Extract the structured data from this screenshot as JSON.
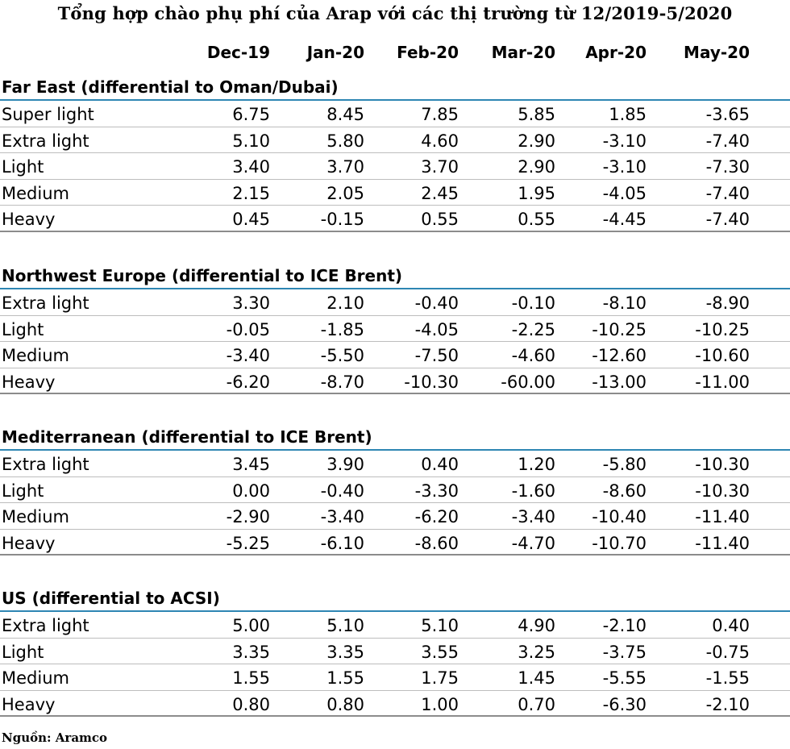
{
  "title": "Tổng hợp chào phụ phí của Arap với các thị trường từ 12/2019-5/2020",
  "columns": [
    "Dec-19",
    "Jan-20",
    "Feb-20",
    "Mar-20",
    "Apr-20",
    "May-20"
  ],
  "sections": [
    {
      "title": "Far East (differential to Oman/Dubai)",
      "rows": [
        {
          "label": "Super light",
          "values": [
            "6.75",
            "8.45",
            "7.85",
            "5.85",
            "1.85",
            "-3.65"
          ]
        },
        {
          "label": "Extra light",
          "values": [
            "5.10",
            "5.80",
            "4.60",
            "2.90",
            "-3.10",
            "-7.40"
          ]
        },
        {
          "label": "Light",
          "values": [
            "3.40",
            "3.70",
            "3.70",
            "2.90",
            "-3.10",
            "-7.30"
          ]
        },
        {
          "label": "Medium",
          "values": [
            "2.15",
            "2.05",
            "2.45",
            "1.95",
            "-4.05",
            "-7.40"
          ]
        },
        {
          "label": "Heavy",
          "values": [
            "0.45",
            "-0.15",
            "0.55",
            "0.55",
            "-4.45",
            "-7.40"
          ]
        }
      ]
    },
    {
      "title": "Northwest Europe (differential to ICE Brent)",
      "rows": [
        {
          "label": "Extra light",
          "values": [
            "3.30",
            "2.10",
            "-0.40",
            "-0.10",
            "-8.10",
            "-8.90"
          ]
        },
        {
          "label": "Light",
          "values": [
            "-0.05",
            "-1.85",
            "-4.05",
            "-2.25",
            "-10.25",
            "-10.25"
          ]
        },
        {
          "label": "Medium",
          "values": [
            "-3.40",
            "-5.50",
            "-7.50",
            "-4.60",
            "-12.60",
            "-10.60"
          ]
        },
        {
          "label": "Heavy",
          "values": [
            "-6.20",
            "-8.70",
            "-10.30",
            "-60.00",
            "-13.00",
            "-11.00"
          ]
        }
      ]
    },
    {
      "title": "Mediterranean (differential to ICE Brent)",
      "rows": [
        {
          "label": "Extra light",
          "values": [
            "3.45",
            "3.90",
            "0.40",
            "1.20",
            "-5.80",
            "-10.30"
          ]
        },
        {
          "label": "Light",
          "values": [
            "0.00",
            "-0.40",
            "-3.30",
            "-1.60",
            "-8.60",
            "-10.30"
          ]
        },
        {
          "label": "Medium",
          "values": [
            "-2.90",
            "-3.40",
            "-6.20",
            "-3.40",
            "-10.40",
            "-11.40"
          ]
        },
        {
          "label": "Heavy",
          "values": [
            "-5.25",
            "-6.10",
            "-8.60",
            "-4.70",
            "-10.70",
            "-11.40"
          ]
        }
      ]
    },
    {
      "title": "US (differential to ACSI)",
      "rows": [
        {
          "label": "Extra light",
          "values": [
            "5.00",
            "5.10",
            "5.10",
            "4.90",
            "-2.10",
            "0.40"
          ]
        },
        {
          "label": "Light",
          "values": [
            "3.35",
            "3.35",
            "3.55",
            "3.25",
            "-3.75",
            "-0.75"
          ]
        },
        {
          "label": "Medium",
          "values": [
            "1.55",
            "1.55",
            "1.75",
            "1.45",
            "-5.55",
            "-1.55"
          ]
        },
        {
          "label": "Heavy",
          "values": [
            "0.80",
            "0.80",
            "1.00",
            "0.70",
            "-6.30",
            "-2.10"
          ]
        }
      ]
    }
  ],
  "source": "Nguồn: Aramco"
}
